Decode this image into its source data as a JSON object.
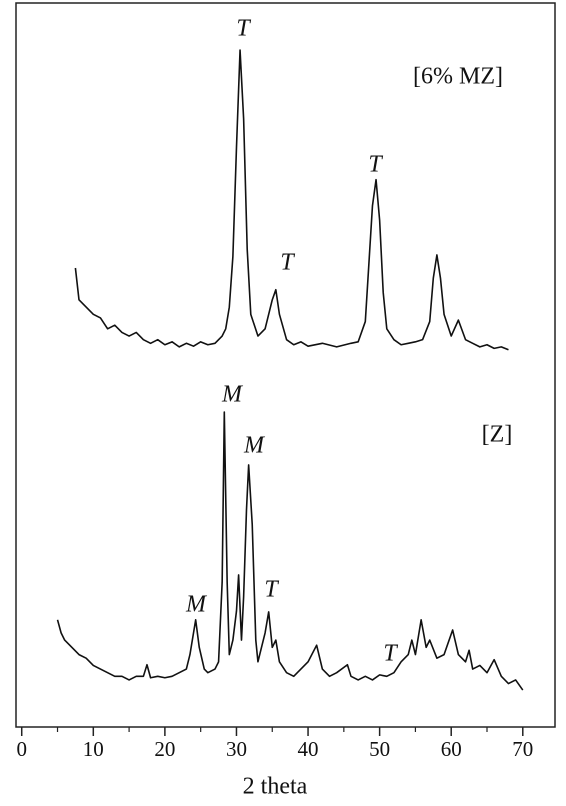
{
  "chart_data": {
    "type": "line",
    "x_label": "2 theta",
    "xlim": [
      -0.8,
      74.5
    ],
    "xticks": [
      0,
      10,
      20,
      30,
      40,
      50,
      60,
      70
    ],
    "ylim": [
      0,
      100
    ],
    "annotations": [
      "T",
      "T",
      "T",
      "M",
      "M",
      "M",
      "T",
      "T"
    ],
    "series": [
      {
        "name": "[6% MZ]",
        "color": "#111111",
        "x": [
          7.5,
          8,
          9,
          10,
          11,
          12,
          13,
          14,
          15,
          16,
          17,
          18,
          19,
          20,
          21,
          22,
          23,
          24,
          25,
          26,
          27,
          28,
          28.5,
          29,
          29.5,
          30,
          30.5,
          31,
          31.5,
          32,
          33,
          34,
          35,
          35.5,
          36,
          37,
          38,
          39,
          40,
          42,
          44,
          46,
          47,
          48,
          48.5,
          49,
          49.5,
          50,
          50.5,
          51,
          52,
          53,
          54,
          55,
          56,
          57,
          57.5,
          58,
          58.5,
          59,
          60,
          61,
          62,
          63,
          64,
          65,
          66,
          67,
          68
        ],
        "values": [
          63.4,
          59,
          58,
          57,
          56.5,
          55,
          55.5,
          54.5,
          54,
          54.5,
          53.5,
          53,
          53.5,
          52.8,
          53.2,
          52.5,
          53,
          52.6,
          53.2,
          52.8,
          53,
          54,
          55,
          58,
          65,
          80,
          93.5,
          84,
          66,
          57,
          54,
          55,
          59,
          60.4,
          57,
          53.5,
          52.8,
          53.2,
          52.6,
          53,
          52.5,
          53,
          53.2,
          56,
          64,
          72,
          75.6,
          70,
          60,
          55,
          53.5,
          52.8,
          53,
          53.2,
          53.5,
          56,
          62,
          65.2,
          62,
          57,
          54,
          56.2,
          53.5,
          53,
          52.5,
          52.8,
          52.3,
          52.5,
          52.1
        ]
      },
      {
        "name": "[Z]",
        "color": "#111111",
        "x": [
          5,
          5.5,
          6,
          7,
          8,
          9,
          10,
          11,
          12,
          13,
          14,
          15,
          16,
          17,
          17.5,
          18,
          19,
          20,
          21,
          22,
          23,
          23.5,
          24,
          24.3,
          24.8,
          25.5,
          26,
          27,
          27.5,
          28,
          28.3,
          28.7,
          29,
          29.5,
          30,
          30.3,
          30.7,
          31,
          31.4,
          31.7,
          32.2,
          32.7,
          33,
          33.5,
          34,
          34.5,
          35,
          35.5,
          36,
          37,
          38,
          39,
          40,
          41.2,
          42,
          43,
          44,
          45.5,
          46,
          47,
          48,
          49,
          50,
          51,
          52,
          53,
          54,
          54.5,
          55,
          55.8,
          56.5,
          57,
          58,
          59,
          60.2,
          61,
          62,
          62.5,
          63,
          64,
          65,
          66,
          67,
          68,
          69,
          70
        ],
        "values": [
          14.8,
          13,
          12,
          11,
          10,
          9.5,
          8.5,
          8,
          7.5,
          7,
          7,
          6.5,
          7,
          7,
          8.6,
          6.8,
          7,
          6.8,
          7,
          7.5,
          8,
          10,
          13,
          14.8,
          11,
          8,
          7.5,
          8,
          9,
          20,
          43.5,
          20,
          10,
          12,
          16,
          21,
          12,
          18,
          30,
          36.2,
          28,
          12,
          9,
          11,
          13,
          15.9,
          11,
          12,
          9,
          7.5,
          7,
          8,
          9,
          11.3,
          8,
          7,
          7.5,
          8.6,
          7,
          6.5,
          7,
          6.5,
          7.2,
          7,
          7.5,
          9,
          10,
          12,
          10,
          14.8,
          11,
          12,
          9.5,
          10,
          13.4,
          10,
          9,
          10.6,
          8,
          8.5,
          7.5,
          9.3,
          7,
          6,
          6.5,
          5.1
        ]
      }
    ]
  }
}
